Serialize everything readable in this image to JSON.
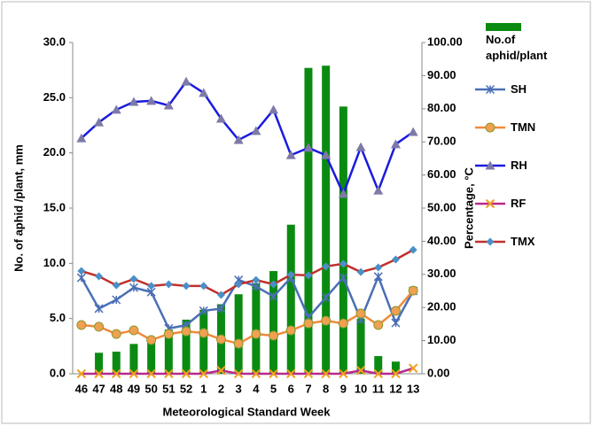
{
  "chart_data": {
    "type": "combo",
    "categories": [
      "46",
      "47",
      "48",
      "49",
      "50",
      "51",
      "52",
      "1",
      "2",
      "3",
      "4",
      "5",
      "6",
      "7",
      "8",
      "9",
      "10",
      "11",
      "12",
      "13"
    ],
    "x_label": "Meteorological Standard Week",
    "y_label": "No. of aphid /plant, mm",
    "y2_label": "Percentage, °C",
    "ylim": [
      0,
      30
    ],
    "yticks": [
      {
        "value": 0,
        "label": "0.0"
      },
      {
        "value": 5,
        "label": "5.0"
      },
      {
        "value": 10,
        "label": "10.0"
      },
      {
        "value": 15,
        "label": "15.0"
      },
      {
        "value": 20,
        "label": "20.0"
      },
      {
        "value": 25,
        "label": "25.0"
      },
      {
        "value": 30,
        "label": "30.0"
      }
    ],
    "y2lim": [
      0,
      100
    ],
    "y2ticks": [
      {
        "value": 0,
        "label": "0.00"
      },
      {
        "value": 10,
        "label": "10.00"
      },
      {
        "value": 20,
        "label": "20.00"
      },
      {
        "value": 30,
        "label": "30.00"
      },
      {
        "value": 40,
        "label": "40.00"
      },
      {
        "value": 50,
        "label": "50.00"
      },
      {
        "value": 60,
        "label": "60.00"
      },
      {
        "value": 70,
        "label": "70.00"
      },
      {
        "value": 80,
        "label": "80.00"
      },
      {
        "value": 90,
        "label": "90.00"
      },
      {
        "value": 100,
        "label": "100.00"
      }
    ],
    "grid": false,
    "legend": "right",
    "series": [
      {
        "name": "No.of aphid/plant",
        "type": "bar",
        "color": "#0b8a12",
        "values": [
          0,
          1.9,
          2.0,
          2.7,
          3.3,
          4.0,
          4.9,
          5.8,
          6.3,
          7.2,
          8.2,
          9.3,
          13.5,
          27.7,
          27.9,
          24.2,
          5.0,
          1.6,
          1.1,
          0
        ]
      },
      {
        "name": "SH",
        "type": "line",
        "color": "#4a6fb5",
        "marker": "star",
        "marker_color": "#4a6fb5",
        "values": [
          8.7,
          5.9,
          6.7,
          7.8,
          7.4,
          4.1,
          4.4,
          5.7,
          5.9,
          8.5,
          7.9,
          7.0,
          8.7,
          5.1,
          6.9,
          8.7,
          4.9,
          8.8,
          4.6,
          7.5
        ]
      },
      {
        "name": "TMN",
        "type": "line",
        "axis": "y2",
        "color": "#f08a3a",
        "marker": "circle",
        "marker_color": "#f0a050",
        "values": [
          14.7,
          14.2,
          12.0,
          13.1,
          10.2,
          12.0,
          12.8,
          12.3,
          10.4,
          9.1,
          12.0,
          11.5,
          13.1,
          15.2,
          16.0,
          15.2,
          18.2,
          14.7,
          19.0,
          25.1
        ]
      },
      {
        "name": "RH",
        "type": "line",
        "axis": "y2",
        "color": "#1a1ae0",
        "marker": "triangle",
        "marker_color": "#7e7aa8",
        "values": [
          71.1,
          75.9,
          79.7,
          82.1,
          82.4,
          81.0,
          88.2,
          84.8,
          77.0,
          70.6,
          73.3,
          79.7,
          66.0,
          68.2,
          66.0,
          54.3,
          68.4,
          55.3,
          69.3,
          73.0
        ]
      },
      {
        "name": "RF",
        "type": "line",
        "color": "#b82a8a",
        "marker": "x",
        "marker_color": "#f0a020",
        "values": [
          0,
          0,
          0,
          0,
          0,
          0,
          0,
          0,
          0.3,
          0,
          0,
          0,
          0,
          0,
          0,
          0,
          0.3,
          0,
          0,
          0.5
        ]
      },
      {
        "name": "TMX",
        "type": "line",
        "axis": "y2",
        "color": "#c0302a",
        "marker": "diamond",
        "marker_color": "#4a90c8",
        "values": [
          31.0,
          29.4,
          26.7,
          28.6,
          26.5,
          27.0,
          26.5,
          26.5,
          23.8,
          27.0,
          28.3,
          27.0,
          29.9,
          29.7,
          32.4,
          33.2,
          30.7,
          32.1,
          34.5,
          37.4
        ]
      }
    ]
  }
}
